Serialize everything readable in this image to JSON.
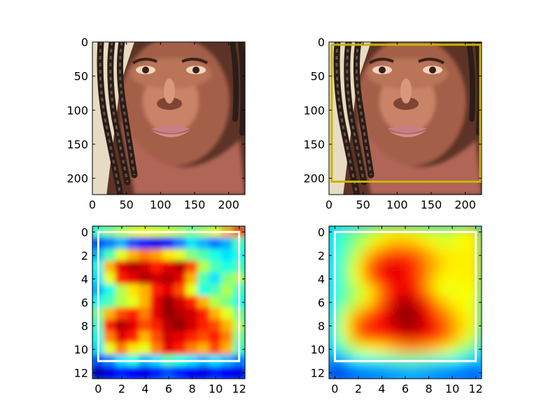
{
  "figure": {
    "background": "#ffffff"
  },
  "chart_data": [
    {
      "type": "heatmap",
      "name": "face-image",
      "content": "photo",
      "extent": [
        0,
        224,
        224,
        0
      ],
      "xticks": [
        "0",
        "50",
        "100",
        "150",
        "200"
      ],
      "yticks": [
        "0",
        "50",
        "100",
        "150",
        "200"
      ],
      "box": null
    },
    {
      "type": "heatmap",
      "name": "face-image-with-box",
      "content": "photo",
      "extent": [
        0,
        224,
        224,
        0
      ],
      "xticks": [
        "0",
        "50",
        "100",
        "150",
        "200"
      ],
      "yticks": [
        "0",
        "50",
        "100",
        "150",
        "200"
      ],
      "box": {
        "x0": 4,
        "y0": 4,
        "x1": 222,
        "y1": 205,
        "color": "#c8b400"
      }
    },
    {
      "type": "heatmap",
      "name": "detail-heatmap",
      "content": "heatmap",
      "colormap": "jet",
      "extent": [
        -0.5,
        12.5,
        12.5,
        -0.5
      ],
      "xticks": [
        "0",
        "2",
        "4",
        "6",
        "8",
        "10",
        "12"
      ],
      "yticks": [
        "0",
        "2",
        "4",
        "6",
        "8",
        "10",
        "12"
      ],
      "box": {
        "x0": 0,
        "y0": 0,
        "x1": 12,
        "y1": 11,
        "color": "#ffffff"
      },
      "values": [
        [
          0.45,
          0.5,
          0.55,
          0.6,
          0.62,
          0.6,
          0.58,
          0.55,
          0.5,
          0.55,
          0.6,
          0.7,
          0.8
        ],
        [
          0.2,
          0.25,
          0.3,
          0.2,
          0.15,
          0.1,
          0.15,
          0.25,
          0.35,
          0.3,
          0.25,
          0.3,
          0.45
        ],
        [
          0.3,
          0.45,
          0.6,
          0.7,
          0.75,
          0.72,
          0.65,
          0.6,
          0.5,
          0.45,
          0.4,
          0.35,
          0.4
        ],
        [
          0.4,
          0.7,
          0.9,
          0.95,
          0.92,
          0.85,
          0.9,
          0.95,
          0.8,
          0.55,
          0.45,
          0.4,
          0.45
        ],
        [
          0.35,
          0.6,
          0.85,
          0.9,
          0.95,
          0.92,
          0.95,
          0.9,
          0.7,
          0.45,
          0.35,
          0.5,
          0.55
        ],
        [
          0.3,
          0.4,
          0.55,
          0.65,
          0.7,
          0.85,
          0.9,
          0.8,
          0.6,
          0.4,
          0.45,
          0.55,
          0.45
        ],
        [
          0.4,
          0.45,
          0.55,
          0.6,
          0.7,
          0.9,
          0.98,
          0.92,
          0.85,
          0.7,
          0.55,
          0.5,
          0.4
        ],
        [
          0.5,
          0.7,
          0.8,
          0.85,
          0.75,
          0.9,
          0.98,
          0.95,
          0.92,
          0.85,
          0.7,
          0.6,
          0.5
        ],
        [
          0.45,
          0.85,
          0.95,
          0.9,
          0.8,
          0.85,
          0.95,
          0.98,
          0.92,
          0.85,
          0.8,
          0.7,
          0.55
        ],
        [
          0.4,
          0.75,
          0.9,
          0.85,
          0.7,
          0.8,
          0.92,
          0.9,
          0.85,
          0.8,
          0.85,
          0.75,
          0.5
        ],
        [
          0.35,
          0.6,
          0.75,
          0.65,
          0.6,
          0.75,
          0.9,
          0.85,
          0.75,
          0.7,
          0.8,
          0.7,
          0.45
        ],
        [
          0.2,
          0.25,
          0.35,
          0.4,
          0.3,
          0.35,
          0.45,
          0.4,
          0.35,
          0.3,
          0.35,
          0.3,
          0.25
        ],
        [
          0.05,
          0.1,
          0.15,
          0.12,
          0.1,
          0.15,
          0.2,
          0.15,
          0.12,
          0.1,
          0.15,
          0.12,
          0.1
        ]
      ]
    },
    {
      "type": "heatmap",
      "name": "smooth-heatmap",
      "content": "heatmap",
      "colormap": "jet",
      "extent": [
        -0.5,
        12.5,
        12.5,
        -0.5
      ],
      "xticks": [
        "0",
        "2",
        "4",
        "6",
        "8",
        "10",
        "12"
      ],
      "yticks": [
        "0",
        "2",
        "4",
        "6",
        "8",
        "10",
        "12"
      ],
      "box": {
        "x0": 0,
        "y0": 0,
        "x1": 12,
        "y1": 11,
        "color": "#ffffff"
      },
      "values": [
        [
          0.4,
          0.45,
          0.5,
          0.55,
          0.6,
          0.62,
          0.62,
          0.6,
          0.58,
          0.56,
          0.58,
          0.62,
          0.65
        ],
        [
          0.38,
          0.45,
          0.52,
          0.6,
          0.66,
          0.7,
          0.7,
          0.68,
          0.64,
          0.6,
          0.6,
          0.62,
          0.64
        ],
        [
          0.38,
          0.48,
          0.58,
          0.7,
          0.78,
          0.82,
          0.82,
          0.78,
          0.72,
          0.66,
          0.64,
          0.64,
          0.64
        ],
        [
          0.38,
          0.5,
          0.64,
          0.78,
          0.88,
          0.9,
          0.88,
          0.82,
          0.74,
          0.68,
          0.64,
          0.64,
          0.64
        ],
        [
          0.38,
          0.5,
          0.62,
          0.76,
          0.86,
          0.9,
          0.88,
          0.82,
          0.72,
          0.64,
          0.62,
          0.64,
          0.64
        ],
        [
          0.38,
          0.48,
          0.56,
          0.64,
          0.76,
          0.86,
          0.9,
          0.84,
          0.72,
          0.62,
          0.6,
          0.62,
          0.62
        ],
        [
          0.4,
          0.5,
          0.58,
          0.66,
          0.78,
          0.9,
          0.96,
          0.92,
          0.82,
          0.7,
          0.64,
          0.62,
          0.6
        ],
        [
          0.42,
          0.58,
          0.7,
          0.78,
          0.86,
          0.94,
          1.0,
          0.96,
          0.88,
          0.78,
          0.7,
          0.64,
          0.6
        ],
        [
          0.44,
          0.64,
          0.8,
          0.86,
          0.88,
          0.92,
          0.98,
          0.96,
          0.9,
          0.82,
          0.74,
          0.66,
          0.6
        ],
        [
          0.42,
          0.6,
          0.74,
          0.8,
          0.82,
          0.86,
          0.9,
          0.9,
          0.86,
          0.8,
          0.72,
          0.64,
          0.56
        ],
        [
          0.36,
          0.48,
          0.58,
          0.62,
          0.64,
          0.68,
          0.72,
          0.72,
          0.7,
          0.66,
          0.6,
          0.52,
          0.46
        ],
        [
          0.24,
          0.32,
          0.38,
          0.4,
          0.42,
          0.44,
          0.46,
          0.46,
          0.44,
          0.42,
          0.4,
          0.36,
          0.32
        ],
        [
          0.08,
          0.16,
          0.2,
          0.22,
          0.24,
          0.26,
          0.28,
          0.28,
          0.26,
          0.24,
          0.22,
          0.2,
          0.16
        ]
      ]
    }
  ]
}
